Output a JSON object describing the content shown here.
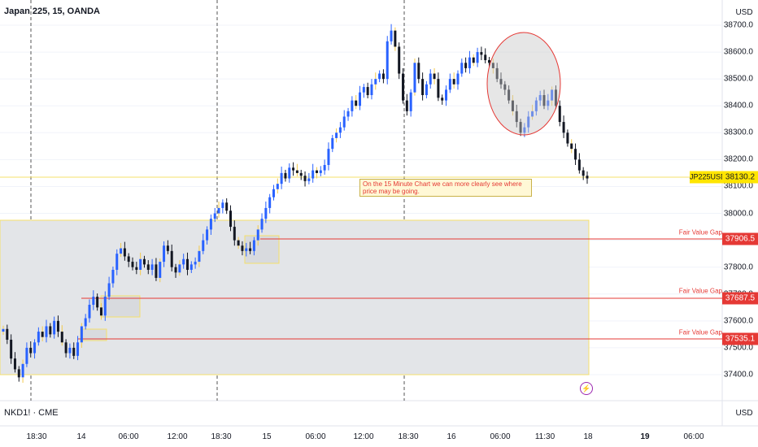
{
  "header": {
    "symbol_title": "Japan 225, 15, OANDA",
    "currency_top": "USD"
  },
  "footer": {
    "symbol2": "NKD1! · CME",
    "currency_bottom": "USD"
  },
  "y_axis": {
    "labels": [
      "38700.0",
      "38600.0",
      "38500.0",
      "38400.0",
      "38300.0",
      "38200.0",
      "38100.0",
      "38000.0",
      "37900.0",
      "37800.0",
      "37700.0",
      "37600.0",
      "37500.0",
      "37400.0"
    ]
  },
  "x_axis": {
    "labels": [
      {
        "text": "18:30",
        "bold": false
      },
      {
        "text": "14",
        "bold": false
      },
      {
        "text": "06:00",
        "bold": false
      },
      {
        "text": "12:00",
        "bold": false
      },
      {
        "text": "18:30",
        "bold": false
      },
      {
        "text": "15",
        "bold": false
      },
      {
        "text": "06:00",
        "bold": false
      },
      {
        "text": "12:00",
        "bold": false
      },
      {
        "text": "18:30",
        "bold": false
      },
      {
        "text": "16",
        "bold": false
      },
      {
        "text": "06:00",
        "bold": false
      },
      {
        "text": "11:30",
        "bold": false
      },
      {
        "text": "18",
        "bold": false
      },
      {
        "text": "19",
        "bold": true
      },
      {
        "text": "06:00",
        "bold": false
      }
    ]
  },
  "annotation": {
    "text": "On the 15 Minute Chart we can more clearly see where price may be going."
  },
  "fvg": [
    {
      "label": "Fair Value Gap",
      "price": "37906.5"
    },
    {
      "label": "Fair Value Gap",
      "price": "37687.5"
    },
    {
      "label": "Fair Value Gap",
      "price": "37535.1"
    }
  ],
  "current": {
    "symbol": "JP225USD",
    "price": "38130.2"
  },
  "colors": {
    "up": "#2962ff",
    "down": "#131722",
    "wick_highlight": "#f2c94c",
    "fvg_line": "#e53935",
    "zone_fill": "#e3e5e8",
    "zone_border": "#f5e06b"
  },
  "icons": {
    "alert": "lightning-icon"
  },
  "chart_data": {
    "type": "candlestick",
    "title": "Japan 225, 15, OANDA",
    "ylim": [
      37340,
      38740
    ],
    "close": [
      37570,
      37530,
      37460,
      37420,
      37390,
      37440,
      37500,
      37480,
      37520,
      37560,
      37540,
      37580,
      37550,
      37600,
      37560,
      37520,
      37480,
      37500,
      37470,
      37520,
      37580,
      37610,
      37660,
      37690,
      37650,
      37620,
      37690,
      37740,
      37790,
      37850,
      37870,
      37840,
      37820,
      37800,
      37790,
      37830,
      37810,
      37790,
      37810,
      37760,
      37820,
      37880,
      37860,
      37800,
      37780,
      37810,
      37830,
      37790,
      37810,
      37820,
      37860,
      37900,
      37940,
      37980,
      38000,
      38020,
      38040,
      38010,
      37950,
      37900,
      37880,
      37860,
      37870,
      37860,
      37900,
      37940,
      37980,
      38020,
      38060,
      38090,
      38110,
      38150,
      38130,
      38170,
      38160,
      38150,
      38140,
      38120,
      38130,
      38160,
      38150,
      38160,
      38180,
      38240,
      38280,
      38300,
      38320,
      38360,
      38380,
      38420,
      38400,
      38450,
      38470,
      38440,
      38480,
      38500,
      38520,
      38500,
      38640,
      38680,
      38620,
      38520,
      38420,
      38380,
      38450,
      38560,
      38500,
      38440,
      38480,
      38520,
      38500,
      38430,
      38420,
      38460,
      38500,
      38480,
      38520,
      38560,
      38540,
      38580,
      38560,
      38600,
      38590,
      38570,
      38560,
      38540,
      38500,
      38480,
      38460,
      38420,
      38380,
      38340,
      38300,
      38320,
      38360,
      38380,
      38420,
      38440,
      38400,
      38420,
      38460,
      38400,
      38340,
      38300,
      38260,
      38240,
      38200,
      38160,
      38140,
      38130
    ],
    "fair_value_gaps": [
      37906.5,
      37687.5,
      37535.1
    ],
    "last_price": 38130.2
  }
}
